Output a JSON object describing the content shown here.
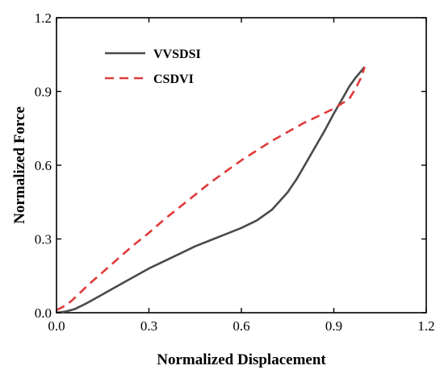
{
  "chart_data": {
    "type": "line",
    "xlabel": "Normalized Displacement",
    "ylabel": "Normalized Force",
    "xlim": [
      0.0,
      1.2
    ],
    "ylim": [
      0.0,
      1.2
    ],
    "xticks": [
      "0.0",
      "0.3",
      "0.6",
      "0.9",
      "1.2"
    ],
    "yticks": [
      "0.0",
      "0.3",
      "0.6",
      "0.9",
      "1.2"
    ],
    "grid": false,
    "legend_position": "top-left",
    "series": [
      {
        "name": "VVSDSI",
        "color": "#4a4a4a",
        "dash": "solid",
        "x": [
          0.0,
          0.03,
          0.06,
          0.1,
          0.15,
          0.2,
          0.25,
          0.3,
          0.35,
          0.4,
          0.45,
          0.5,
          0.55,
          0.6,
          0.65,
          0.7,
          0.75,
          0.78,
          0.81,
          0.84,
          0.87,
          0.9,
          0.93,
          0.95,
          0.97,
          0.99,
          1.0
        ],
        "y": [
          0.0,
          0.005,
          0.015,
          0.04,
          0.075,
          0.11,
          0.145,
          0.18,
          0.21,
          0.24,
          0.27,
          0.295,
          0.32,
          0.345,
          0.375,
          0.42,
          0.49,
          0.545,
          0.61,
          0.675,
          0.74,
          0.81,
          0.875,
          0.92,
          0.955,
          0.985,
          1.0
        ]
      },
      {
        "name": "CSDVI",
        "color": "#e03a3a",
        "dash": "dashed",
        "x": [
          0.0,
          0.03,
          0.05,
          0.08,
          0.1,
          0.15,
          0.2,
          0.25,
          0.3,
          0.35,
          0.4,
          0.45,
          0.5,
          0.55,
          0.6,
          0.65,
          0.7,
          0.75,
          0.8,
          0.85,
          0.9,
          0.95,
          0.97,
          0.99,
          1.0
        ],
        "y": [
          0.01,
          0.03,
          0.05,
          0.085,
          0.11,
          0.165,
          0.22,
          0.275,
          0.325,
          0.38,
          0.43,
          0.48,
          0.53,
          0.575,
          0.62,
          0.66,
          0.7,
          0.735,
          0.77,
          0.8,
          0.83,
          0.87,
          0.91,
          0.96,
          1.0
        ]
      }
    ]
  }
}
